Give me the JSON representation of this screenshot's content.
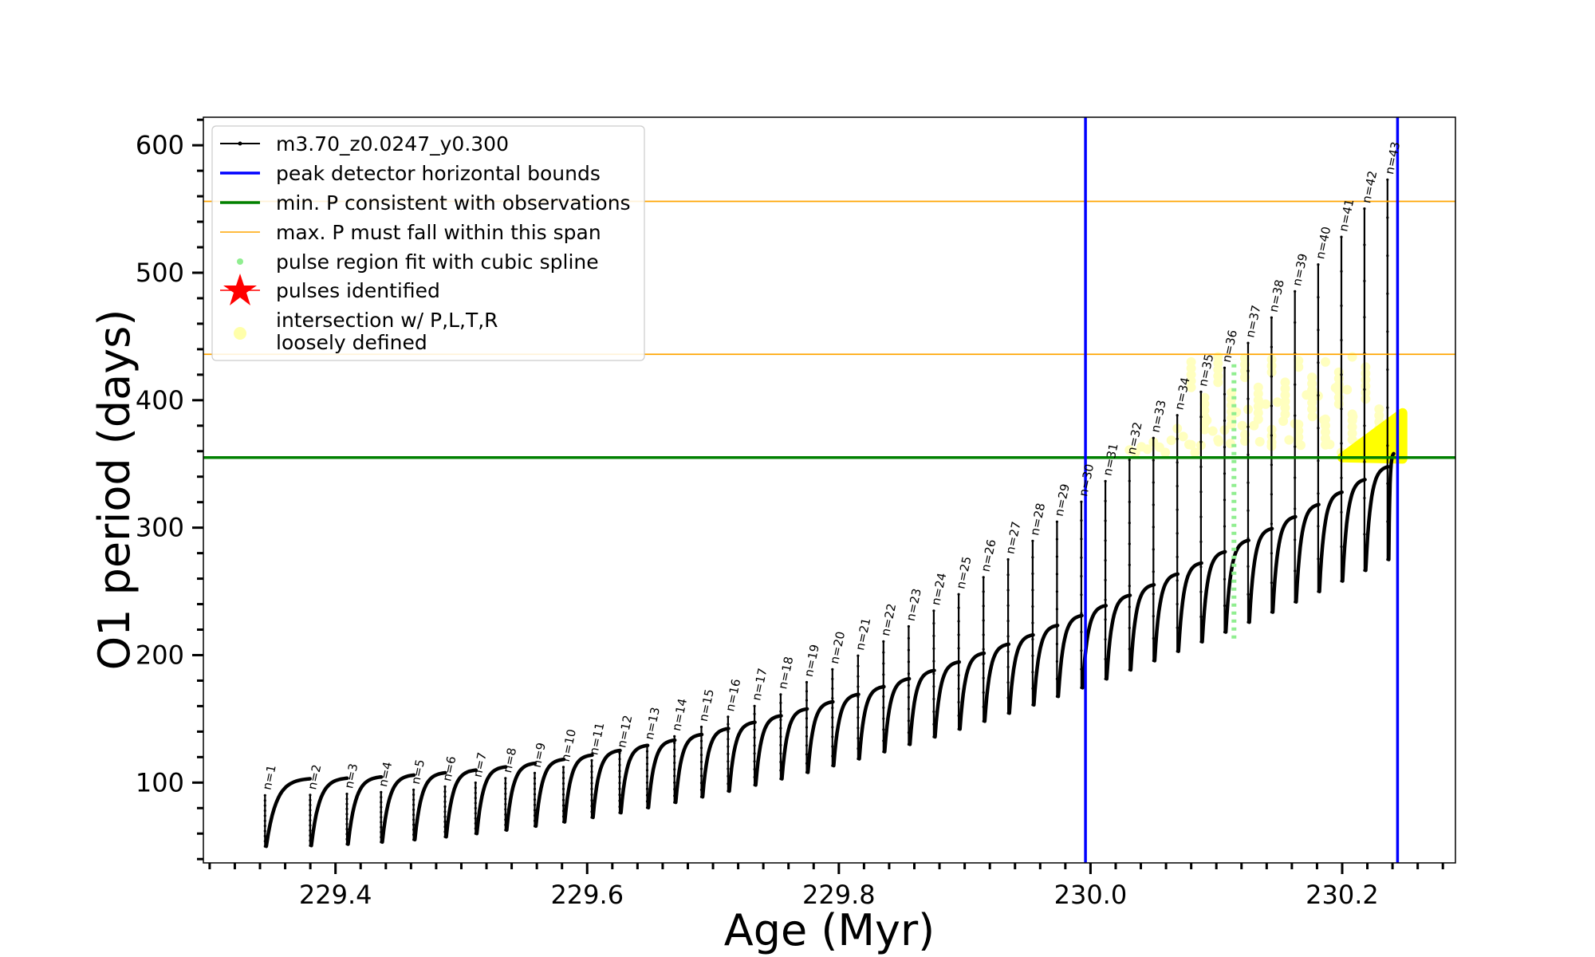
{
  "chart_data": {
    "type": "line",
    "title": "",
    "xlabel": "Age (Myr)",
    "ylabel": "O1 period (days)",
    "xlim": [
      229.295,
      230.29
    ],
    "ylim": [
      37,
      622
    ],
    "xticks": [
      229.4,
      229.6,
      229.8,
      230.0,
      230.2
    ],
    "xtick_labels": [
      "229.4",
      "229.6",
      "229.8",
      "230.0",
      "230.2"
    ],
    "yticks": [
      100,
      200,
      300,
      400,
      500,
      600
    ],
    "ytick_labels": [
      "100",
      "200",
      "300",
      "400",
      "500",
      "600"
    ],
    "grid": false,
    "legend_position": "top-left",
    "colors": {
      "series": "#000000",
      "bounds": "#0000ff",
      "min_p": "#008000",
      "max_p": "#ffa500",
      "spline": "#90ee90",
      "pulses": "#ff0000",
      "intersection": "#ffff00",
      "intersection_loose": "#ffffaa"
    },
    "series_name": "m3.70_z0.0247_y0.300",
    "first_pulse_age": 229.344,
    "last_pulse_age": 230.236,
    "pulse_count": 43,
    "first_peak_period": 90,
    "last_peak_period": 573,
    "first_trough_period": 50,
    "last_trough_period": 275,
    "first_plateau_period": 103,
    "last_plateau_period": 358,
    "peak_detector_bounds": [
      229.996,
      230.244
    ],
    "min_period_observations": 355,
    "max_period_span": [
      436,
      556
    ],
    "spline_region": {
      "age": 230.114,
      "period_range": [
        213,
        432
      ]
    },
    "intersection_region": {
      "age_range": [
        230.2,
        230.244
      ],
      "period_range": [
        355,
        390
      ]
    },
    "pulse_labels": [
      "n=1",
      "n=2",
      "n=3",
      "n=4",
      "n=5",
      "n=6",
      "n=7",
      "n=8",
      "n=9",
      "n=10",
      "n=11",
      "n=12",
      "n=13",
      "n=14",
      "n=15",
      "n=16",
      "n=17",
      "n=18",
      "n=19",
      "n=20",
      "n=21",
      "n=22",
      "n=23",
      "n=24",
      "n=25",
      "n=26",
      "n=27",
      "n=28",
      "n=29",
      "n=30",
      "n=31",
      "n=32",
      "n=33",
      "n=34",
      "n=35",
      "n=36",
      "n=37",
      "n=38",
      "n=39",
      "n=40",
      "n=41",
      "n=42",
      "n=43"
    ],
    "legend": [
      {
        "label": "m3.70_z0.0247_y0.300",
        "marker": "line-dot"
      },
      {
        "label": "peak detector horizontal bounds",
        "marker": "blue-line"
      },
      {
        "label": "min. P consistent with observations",
        "marker": "green-line"
      },
      {
        "label": "max. P must fall within this span",
        "marker": "orange-line"
      },
      {
        "label": "pulse region fit with cubic spline",
        "marker": "green-dot"
      },
      {
        "label": "pulses identified",
        "marker": "red-star"
      },
      {
        "label": "intersection w/ P,L,T,R",
        "marker": "yellow-dot"
      },
      {
        "label": "loosely defined",
        "marker": "none"
      }
    ]
  }
}
